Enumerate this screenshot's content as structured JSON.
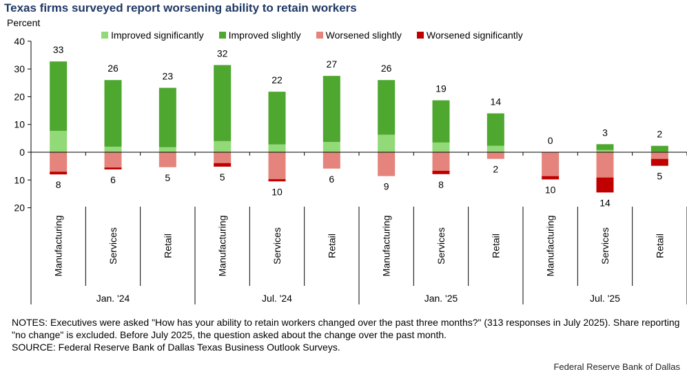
{
  "chart_data": {
    "type": "bar",
    "title": "Texas firms surveyed report worsening ability to retain workers",
    "ylabel": "Percent",
    "ylim": [
      -20,
      40
    ],
    "yticks": [
      {
        "v": 40,
        "label": "40"
      },
      {
        "v": 30,
        "label": "30"
      },
      {
        "v": 20,
        "label": "20"
      },
      {
        "v": 10,
        "label": "10"
      },
      {
        "v": 0,
        "label": "0"
      },
      {
        "v": -10,
        "label": "10"
      },
      {
        "v": -20,
        "label": "20"
      }
    ],
    "groups": [
      "Jan. '24",
      "Jul. '24",
      "Jan. '25",
      "Jul. '25"
    ],
    "categories": [
      "Manufacturing",
      "Services",
      "Retail",
      "Manufacturing",
      "Services",
      "Retail",
      "Manufacturing",
      "Services",
      "Retail",
      "Manufacturing",
      "Services",
      "Retail"
    ],
    "series": [
      {
        "name": "Improved significantly",
        "color": "#92d978",
        "values": [
          7.7,
          2,
          1.8,
          4,
          2.8,
          3.7,
          6.3,
          3.5,
          2.3,
          0,
          0.8,
          0.2
        ]
      },
      {
        "name": "Improved slightly",
        "color": "#4ea72e",
        "values": [
          25,
          24,
          21.4,
          27.4,
          19,
          23.8,
          19.7,
          15.2,
          11.7,
          0,
          2.1,
          2.1
        ]
      },
      {
        "name": "Worsened slightly",
        "color": "#e4847c",
        "values": [
          7,
          5.5,
          5.4,
          3.9,
          9.7,
          5.9,
          8.6,
          6.7,
          2.4,
          8.6,
          9.1,
          2.4
        ]
      },
      {
        "name": "Worsened significantly",
        "color": "#c00000",
        "values": [
          1,
          0.7,
          0,
          1.3,
          0.8,
          0,
          0,
          1.2,
          0,
          1.2,
          5.4,
          2.5
        ]
      }
    ],
    "top_labels": [
      "33",
      "26",
      "23",
      "32",
      "22",
      "27",
      "26",
      "19",
      "14",
      "0",
      "3",
      "2"
    ],
    "bottom_labels": [
      "8",
      "6",
      "5",
      "5",
      "10",
      "6",
      "9",
      "8",
      "2",
      "10",
      "14",
      "5"
    ]
  },
  "notes": "NOTES: Executives were asked \"How has your ability to retain workers changed over the past three months?\" (313 responses in July 2025). Share reporting \"no change\" is excluded. Before July 2025, the question asked about the change over the past month.",
  "source": "SOURCE: Federal Reserve Bank of Dallas Texas Business Outlook Surveys.",
  "credit": "Federal Reserve Bank of Dallas"
}
